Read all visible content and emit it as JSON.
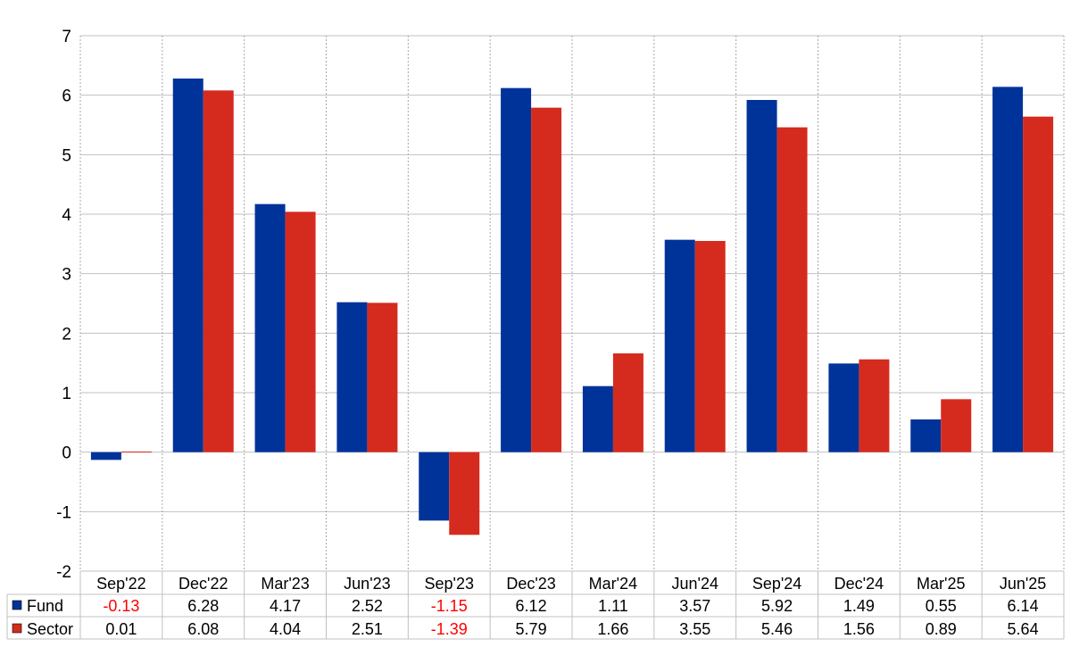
{
  "chart_data": {
    "type": "bar",
    "categories": [
      "Sep'22",
      "Dec'22",
      "Mar'23",
      "Jun'23",
      "Sep'23",
      "Dec'23",
      "Mar'24",
      "Jun'24",
      "Sep'24",
      "Dec'24",
      "Mar'25",
      "Jun'25"
    ],
    "series": [
      {
        "name": "Fund",
        "color": "#003399",
        "values": [
          -0.13,
          6.28,
          4.17,
          2.52,
          -1.15,
          6.12,
          1.11,
          3.57,
          5.92,
          1.49,
          0.55,
          6.14
        ],
        "labels": [
          "-0.13",
          "6.28",
          "4.17",
          "2.52",
          "-1.15",
          "6.12",
          "1.11",
          "3.57",
          "5.92",
          "1.49",
          "0.55",
          "6.14"
        ]
      },
      {
        "name": "Sector",
        "color": "#d52b1e",
        "values": [
          0.01,
          6.08,
          4.04,
          2.51,
          -1.39,
          5.79,
          1.66,
          3.55,
          5.46,
          1.56,
          0.89,
          5.64
        ],
        "labels": [
          "0.01",
          "6.08",
          "4.04",
          "2.51",
          "-1.39",
          "5.79",
          "1.66",
          "3.55",
          "5.46",
          "1.56",
          "0.89",
          "5.64"
        ]
      }
    ],
    "ylim": [
      -2,
      7
    ],
    "yticks": [
      "-2",
      "-1",
      "0",
      "1",
      "2",
      "3",
      "4",
      "5",
      "6",
      "7"
    ],
    "title": "",
    "xlabel": "",
    "ylabel": "",
    "grid": true,
    "legend": "data table below chart",
    "negative_value_color": "#ff0000",
    "text_color": "#000000",
    "grid_color": "#c0c0c0"
  }
}
